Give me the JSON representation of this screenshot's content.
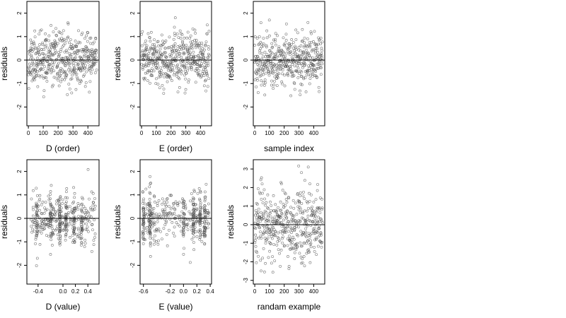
{
  "chart_data": [
    {
      "type": "scatter",
      "xlabel": "D (order)",
      "ylabel": "residuals",
      "xlim": [
        -10,
        475
      ],
      "ylim": [
        -2.8,
        2.5
      ],
      "x_ticks": [
        0,
        100,
        200,
        300,
        400
      ],
      "y_ticks": [
        -2,
        -1,
        0,
        1,
        2
      ],
      "reference_line_y": 0,
      "n_points": 460,
      "seed": 11,
      "mode": "index",
      "y_spread": 0.55
    },
    {
      "type": "scatter",
      "xlabel": "E (order)",
      "ylabel": "residuals",
      "xlim": [
        -10,
        475
      ],
      "ylim": [
        -2.8,
        2.5
      ],
      "x_ticks": [
        0,
        100,
        200,
        300,
        400
      ],
      "y_ticks": [
        -2,
        -1,
        0,
        1,
        2
      ],
      "reference_line_y": 0,
      "n_points": 460,
      "seed": 23,
      "mode": "index",
      "y_spread": 0.55
    },
    {
      "type": "scatter",
      "xlabel": "sample index",
      "ylabel": "residuals",
      "xlim": [
        -10,
        475
      ],
      "ylim": [
        -2.8,
        2.5
      ],
      "x_ticks": [
        0,
        100,
        200,
        300,
        400
      ],
      "y_ticks": [
        -2,
        -1,
        0,
        1,
        2
      ],
      "reference_line_y": 0,
      "n_points": 460,
      "seed": 37,
      "mode": "index",
      "y_spread": 0.55
    },
    {
      "type": "scatter",
      "xlabel": "D (value)",
      "ylabel": "residuals",
      "xlim": [
        -0.58,
        0.58
      ],
      "ylim": [
        -2.8,
        2.5
      ],
      "x_ticks": [
        -0.4,
        0.0,
        0.2,
        0.4
      ],
      "x_tick_labels": [
        "-0.4",
        "0.0",
        "0.2",
        "0.4"
      ],
      "y_ticks": [
        -2,
        -1,
        0,
        1,
        2
      ],
      "reference_line_y": 0,
      "n_points": 460,
      "seed": 41,
      "mode": "value",
      "x_range": [
        -0.52,
        0.52
      ],
      "clusters": [
        -0.42,
        -0.2,
        -0.05,
        0.05,
        0.18,
        0.3
      ],
      "y_spread": 0.55
    },
    {
      "type": "scatter",
      "xlabel": "E (value)",
      "ylabel": "residuals",
      "xlim": [
        -0.65,
        0.42
      ],
      "ylim": [
        -2.8,
        2.5
      ],
      "x_ticks": [
        -0.6,
        -0.2,
        0.0,
        0.2,
        0.4
      ],
      "x_tick_labels": [
        "-0.6",
        "-0.2",
        "0.0",
        "0.2",
        "0.4"
      ],
      "y_ticks": [
        -2,
        -1,
        0,
        1,
        2
      ],
      "reference_line_y": 0,
      "n_points": 460,
      "seed": 53,
      "mode": "value",
      "x_range": [
        -0.62,
        0.38
      ],
      "clusters": [
        -0.6,
        -0.5,
        0.0,
        0.15,
        0.25,
        0.32
      ],
      "y_spread": 0.55
    },
    {
      "type": "scatter",
      "xlabel": "randam example",
      "ylabel": "residuals",
      "xlim": [
        -10,
        475
      ],
      "ylim": [
        -3.2,
        3.5
      ],
      "x_ticks": [
        0,
        100,
        200,
        300,
        400
      ],
      "y_ticks": [
        -3,
        -2,
        -1,
        0,
        1,
        2,
        3
      ],
      "reference_line_y": 0,
      "n_points": 460,
      "seed": 67,
      "mode": "index",
      "y_spread": 0.95
    }
  ]
}
